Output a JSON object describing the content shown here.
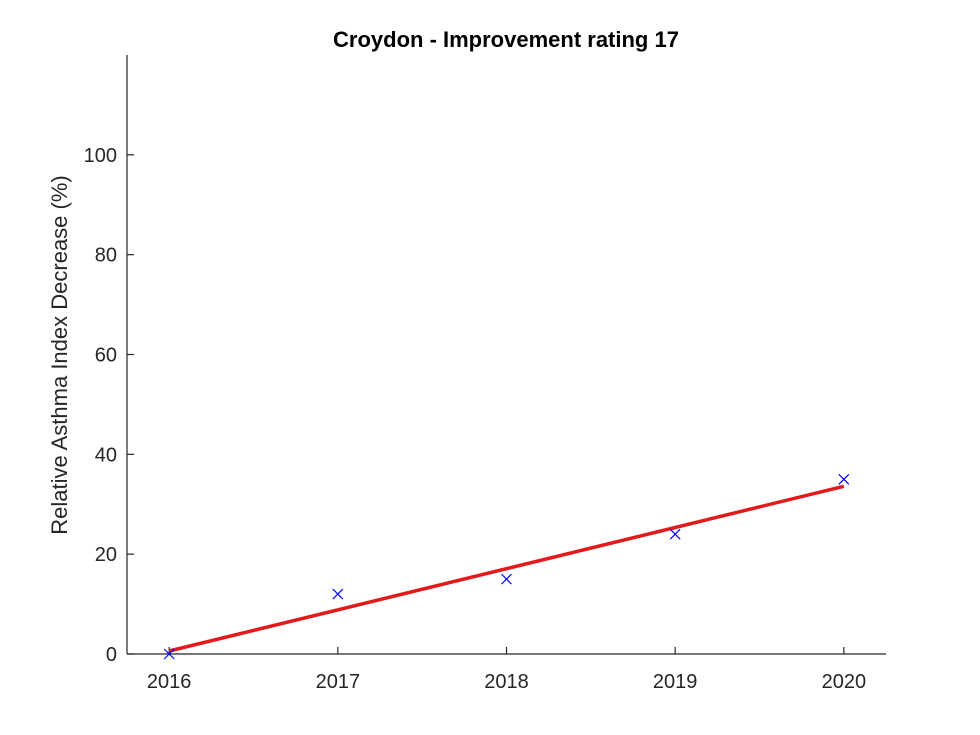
{
  "chart_data": {
    "type": "scatter",
    "title": "Croydon - Improvement rating 17",
    "xlabel": "",
    "ylabel": "Relative Asthma Index Decrease (%)",
    "xlim": [
      2015.75,
      2020.25
    ],
    "ylim": [
      0,
      120
    ],
    "x_ticks": [
      2016,
      2017,
      2018,
      2019,
      2020
    ],
    "y_ticks": [
      0,
      20,
      40,
      60,
      80,
      100
    ],
    "grid": false,
    "series": [
      {
        "kind": "markers",
        "marker": "x",
        "color": "#0000ff",
        "x": [
          2016,
          2017,
          2018,
          2019,
          2020
        ],
        "y": [
          0,
          12,
          15,
          24,
          35
        ]
      },
      {
        "kind": "line",
        "color": "#e31a1c",
        "x": [
          2016,
          2020
        ],
        "y": [
          0.6,
          33.6
        ]
      }
    ]
  }
}
